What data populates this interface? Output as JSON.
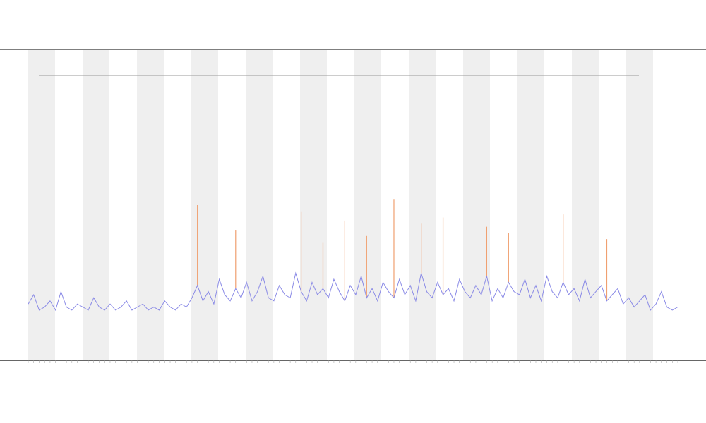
{
  "chart_data": {
    "type": "line",
    "categories": [
      null,
      null,
      null,
      null,
      null,
      null,
      null,
      null,
      null,
      null,
      null,
      null,
      null,
      null,
      null,
      null,
      null,
      null,
      null,
      null,
      null,
      null,
      null,
      null,
      null,
      null,
      null,
      null,
      null,
      null,
      null,
      null,
      null,
      null,
      null,
      null,
      null,
      null,
      null,
      null,
      null,
      null,
      null,
      null,
      null,
      null,
      null,
      null,
      null,
      null,
      null,
      null,
      null,
      null,
      null,
      null,
      null,
      null,
      null,
      null,
      null,
      null,
      null,
      null,
      null,
      null,
      null,
      null,
      null,
      null,
      null,
      null,
      null,
      null,
      null,
      null,
      null,
      null,
      null,
      null,
      null,
      null,
      null,
      null,
      null,
      null,
      null,
      null,
      null,
      null,
      null,
      null,
      null,
      null,
      null,
      null,
      null,
      null,
      null,
      null,
      null,
      null,
      null,
      null,
      null,
      null,
      null,
      null,
      null,
      null,
      null,
      null,
      null,
      null,
      null,
      null,
      null,
      null,
      null,
      null
    ],
    "series": [
      {
        "color": "#8a8ae6",
        "values": [
          18,
          21,
          16,
          17,
          19,
          16,
          22,
          17,
          16,
          18,
          17,
          16,
          20,
          17,
          16,
          18,
          16,
          17,
          19,
          16,
          17,
          18,
          16,
          17,
          16,
          19,
          17,
          16,
          18,
          17,
          20,
          24,
          19,
          22,
          18,
          26,
          21,
          19,
          23,
          20,
          25,
          19,
          22,
          27,
          20,
          19,
          24,
          21,
          20,
          28,
          22,
          19,
          25,
          21,
          23,
          20,
          26,
          22,
          19,
          24,
          21,
          27,
          20,
          23,
          19,
          25,
          22,
          20,
          26,
          21,
          24,
          19,
          28,
          22,
          20,
          25,
          21,
          23,
          19,
          26,
          22,
          20,
          24,
          21,
          27,
          19,
          23,
          20,
          25,
          22,
          21,
          26,
          20,
          24,
          19,
          27,
          22,
          20,
          25,
          21,
          23,
          19,
          26,
          20,
          22,
          24,
          19,
          21,
          23,
          18,
          20,
          17,
          19,
          21,
          16,
          18,
          22,
          17,
          16,
          17
        ]
      },
      {
        "color": "#f0a070",
        "values": [
          null,
          null,
          null,
          null,
          null,
          null,
          null,
          null,
          null,
          null,
          null,
          null,
          null,
          null,
          null,
          null,
          null,
          null,
          null,
          null,
          null,
          null,
          null,
          null,
          null,
          null,
          null,
          null,
          null,
          null,
          null,
          50,
          null,
          null,
          null,
          null,
          null,
          null,
          42,
          null,
          null,
          null,
          null,
          null,
          null,
          null,
          null,
          null,
          null,
          null,
          48,
          null,
          null,
          null,
          38,
          null,
          null,
          null,
          45,
          null,
          null,
          null,
          40,
          null,
          null,
          null,
          null,
          52,
          null,
          null,
          null,
          null,
          44,
          null,
          null,
          null,
          46,
          null,
          null,
          null,
          null,
          null,
          null,
          null,
          43,
          null,
          null,
          null,
          41,
          null,
          null,
          null,
          null,
          null,
          null,
          null,
          null,
          null,
          47,
          null,
          null,
          null,
          null,
          null,
          null,
          null,
          39,
          null,
          null,
          null,
          null,
          null,
          null,
          null,
          null,
          null,
          null,
          null,
          null,
          null
        ]
      }
    ],
    "ylim": [
      0,
      100
    ]
  }
}
